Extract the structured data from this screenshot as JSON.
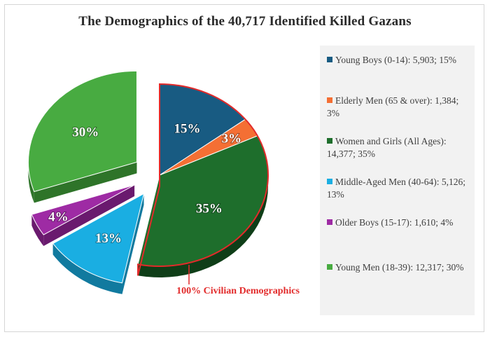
{
  "chart_data": {
    "type": "pie",
    "title": "The Demographics of the 40,717 Identified Killed Gazans",
    "total": 40717,
    "slices": [
      {
        "name": "Young Boys (0-14)",
        "count": 5903,
        "percent": 15,
        "label": "15%",
        "legend": "Young Boys (0-14): 5,903; 15%",
        "color": "#185b82",
        "side": "#0e3f5e",
        "exploded": false
      },
      {
        "name": "Elderly Men (65 & over)",
        "count": 1384,
        "percent": 3,
        "label": "3%",
        "legend": "Elderly Men (65 & over): 1,384; 3%",
        "color": "#f46f34",
        "side": "#b34a1c",
        "exploded": false
      },
      {
        "name": "Women and Girls (All Ages)",
        "count": 14377,
        "percent": 35,
        "label": "35%",
        "legend": "Women and Girls (All Ages): 14,377; 35%",
        "color": "#1e6e2c",
        "side": "#0f3e18",
        "exploded": false
      },
      {
        "name": "Middle-Aged Men (40-64)",
        "count": 5126,
        "percent": 13,
        "label": "13%",
        "legend": "Middle-Aged Men (40-64): 5,126; 13%",
        "color": "#1aaee2",
        "side": "#117a9f",
        "exploded": true
      },
      {
        "name": "Older Boys (15-17)",
        "count": 1610,
        "percent": 4,
        "label": "4%",
        "legend": "Older Boys (15-17): 1,610; 4%",
        "color": "#9e2ba4",
        "side": "#6a1a6e",
        "exploded": true
      },
      {
        "name": "Young Men (18-39)",
        "count": 12317,
        "percent": 30,
        "label": "30%",
        "legend": "Young Men (18-39): 12,317; 30%",
        "color": "#48ab41",
        "side": "#2e7429",
        "exploded": true
      }
    ],
    "highlight": {
      "label": "100% Civilian Demographics",
      "color": "#e22a2a"
    },
    "legend_position": "right"
  }
}
